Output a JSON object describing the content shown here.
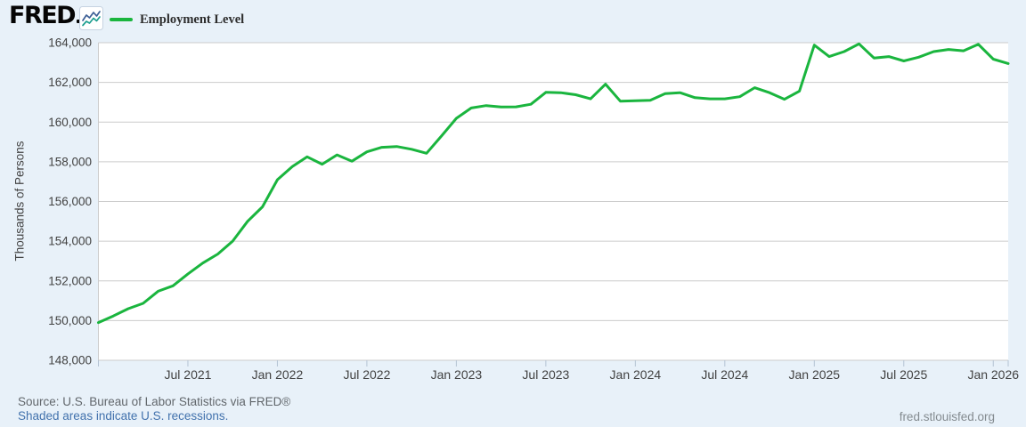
{
  "header": {
    "logo_text": "FRED",
    "legend": {
      "label": "Employment Level"
    }
  },
  "chart_data": {
    "type": "line",
    "title": "Employment Level",
    "ylabel": "Thousands of Persons",
    "frequency": "monthly",
    "x_range": {
      "start": "Jan 2021",
      "end": "Feb 2026"
    },
    "ylim": [
      148000,
      164000
    ],
    "y_tick_step": 2000,
    "grid": "horizontal",
    "legend_position": "top-left",
    "x_ticks": [
      {
        "label": "Jul 2021",
        "month_index": 6
      },
      {
        "label": "Jan 2022",
        "month_index": 12
      },
      {
        "label": "Jul 2022",
        "month_index": 18
      },
      {
        "label": "Jan 2023",
        "month_index": 24
      },
      {
        "label": "Jul 2023",
        "month_index": 30
      },
      {
        "label": "Jan 2024",
        "month_index": 36
      },
      {
        "label": "Jul 2024",
        "month_index": 42
      },
      {
        "label": "Jan 2025",
        "month_index": 48
      },
      {
        "label": "Jul 2025",
        "month_index": 54
      },
      {
        "label": "Jan 2026",
        "month_index": 60
      }
    ],
    "series": [
      {
        "name": "Employment Level",
        "color": "#1ab53e",
        "values": [
          149900,
          150230,
          150600,
          150870,
          151480,
          151750,
          152350,
          152900,
          153350,
          154000,
          155000,
          155730,
          157100,
          157760,
          158250,
          157880,
          158350,
          158030,
          158500,
          158730,
          158770,
          158630,
          158430,
          159300,
          160190,
          160710,
          160830,
          160760,
          160770,
          160900,
          161500,
          161480,
          161380,
          161170,
          161910,
          161050,
          161080,
          161100,
          161430,
          161480,
          161230,
          161170,
          161170,
          161280,
          161730,
          161480,
          161150,
          161560,
          163880,
          163300,
          163550,
          163940,
          163230,
          163300,
          163080,
          163270,
          163550,
          163660,
          163590,
          163920,
          163170,
          162950
        ]
      }
    ]
  },
  "footer": {
    "source": "Source: U.S. Bureau of Labor Statistics via FRED®",
    "recessions_note": "Shaded areas indicate U.S. recessions.",
    "site_link": "fred.stlouisfed.org"
  },
  "colors": {
    "background": "#e8f1f9",
    "plot_background": "#ffffff",
    "gridline": "#cccccc",
    "axis_text": "#424242",
    "tick_mark": "#b4c3d3",
    "line": "#1ab53e",
    "link": "#4272ad",
    "source_text": "#62676c",
    "site_text": "#848b90"
  }
}
